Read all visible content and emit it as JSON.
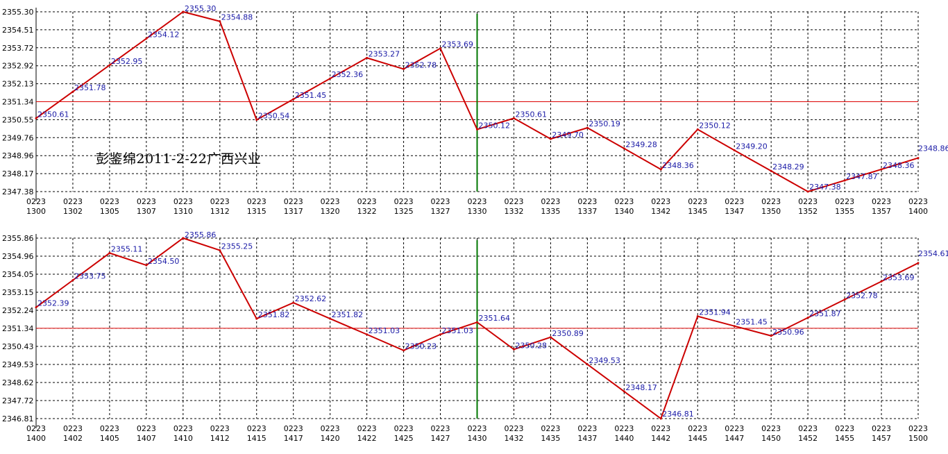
{
  "annotation": "彭鉴绵2011-2-22广西兴业",
  "colors": {
    "line": "#cc0000",
    "label": "#1a1aa6",
    "grid": "#000000",
    "refline": "#dd0000",
    "vline": "#007700"
  },
  "chart_data": [
    {
      "type": "line",
      "title": "",
      "grid": true,
      "ylim": [
        2347.38,
        2355.3
      ],
      "yticks": [
        "2355.30",
        "2354.51",
        "2353.72",
        "2352.92",
        "2352.13",
        "2351.34",
        "2350.55",
        "2349.76",
        "2348.96",
        "2348.17",
        "2347.38"
      ],
      "xticks": [
        [
          "0223",
          "1300"
        ],
        [
          "0223",
          "1302"
        ],
        [
          "0223",
          "1305"
        ],
        [
          "0223",
          "1307"
        ],
        [
          "0223",
          "1310"
        ],
        [
          "0223",
          "1312"
        ],
        [
          "0223",
          "1315"
        ],
        [
          "0223",
          "1317"
        ],
        [
          "0223",
          "1320"
        ],
        [
          "0223",
          "1322"
        ],
        [
          "0223",
          "1325"
        ],
        [
          "0223",
          "1327"
        ],
        [
          "0223",
          "1330"
        ],
        [
          "0223",
          "1332"
        ],
        [
          "0223",
          "1335"
        ],
        [
          "0223",
          "1337"
        ],
        [
          "0223",
          "1340"
        ],
        [
          "0223",
          "1342"
        ],
        [
          "0223",
          "1345"
        ],
        [
          "0223",
          "1347"
        ],
        [
          "0223",
          "1350"
        ],
        [
          "0223",
          "1352"
        ],
        [
          "0223",
          "1355"
        ],
        [
          "0223",
          "1357"
        ],
        [
          "0223",
          "1400"
        ]
      ],
      "reference_value": 2351.34,
      "vertical_marker_index": 12,
      "points": [
        {
          "i": 0,
          "v": 2350.61,
          "label": "2350.61"
        },
        {
          "i": 1,
          "v": 2351.78,
          "label": "2351.78"
        },
        {
          "i": 2,
          "v": 2352.95,
          "label": "2352.95"
        },
        {
          "i": 3,
          "v": 2354.12,
          "label": "2354.12"
        },
        {
          "i": 4,
          "v": 2355.3,
          "label": "2355.30"
        },
        {
          "i": 5,
          "v": 2354.88,
          "label": "2354.88"
        },
        {
          "i": 6,
          "v": 2350.54,
          "label": "2350.54"
        },
        {
          "i": 7,
          "v": 2351.45,
          "label": "2351.45"
        },
        {
          "i": 8,
          "v": 2352.36,
          "label": "2352.36"
        },
        {
          "i": 9,
          "v": 2353.27,
          "label": "2353.27"
        },
        {
          "i": 10,
          "v": 2352.78,
          "label": "2352.78"
        },
        {
          "i": 11,
          "v": 2353.69,
          "label": "2353.69"
        },
        {
          "i": 12,
          "v": 2350.12,
          "label": "2350.12"
        },
        {
          "i": 13,
          "v": 2350.61,
          "label": "2350.61"
        },
        {
          "i": 14,
          "v": 2349.7,
          "label": "2349.70"
        },
        {
          "i": 15,
          "v": 2350.19,
          "label": "2350.19"
        },
        {
          "i": 16,
          "v": 2349.28,
          "label": "2349.28"
        },
        {
          "i": 17,
          "v": 2348.36,
          "label": "2348.36"
        },
        {
          "i": 18,
          "v": 2350.12,
          "label": "2350.12"
        },
        {
          "i": 19,
          "v": 2349.2,
          "label": "2349.20"
        },
        {
          "i": 20,
          "v": 2348.29,
          "label": "2348.29"
        },
        {
          "i": 21,
          "v": 2347.38,
          "label": "2347.38"
        },
        {
          "i": 22,
          "v": 2347.87,
          "label": "2347.87"
        },
        {
          "i": 23,
          "v": 2348.36,
          "label": "2348.36"
        },
        {
          "i": 24,
          "v": 2348.86,
          "label": "2348.86"
        }
      ]
    },
    {
      "type": "line",
      "title": "",
      "grid": true,
      "ylim": [
        2346.81,
        2355.86
      ],
      "yticks": [
        "2355.86",
        "2354.96",
        "2354.05",
        "2353.15",
        "2352.24",
        "2351.34",
        "2350.43",
        "2349.53",
        "2348.62",
        "2347.72",
        "2346.81"
      ],
      "xticks": [
        [
          "0223",
          "1400"
        ],
        [
          "0223",
          "1402"
        ],
        [
          "0223",
          "1405"
        ],
        [
          "0223",
          "1407"
        ],
        [
          "0223",
          "1410"
        ],
        [
          "0223",
          "1412"
        ],
        [
          "0223",
          "1415"
        ],
        [
          "0223",
          "1417"
        ],
        [
          "0223",
          "1420"
        ],
        [
          "0223",
          "1422"
        ],
        [
          "0223",
          "1425"
        ],
        [
          "0223",
          "1427"
        ],
        [
          "0223",
          "1430"
        ],
        [
          "0223",
          "1432"
        ],
        [
          "0223",
          "1435"
        ],
        [
          "0223",
          "1437"
        ],
        [
          "0223",
          "1440"
        ],
        [
          "0223",
          "1442"
        ],
        [
          "0223",
          "1445"
        ],
        [
          "0223",
          "1447"
        ],
        [
          "0223",
          "1450"
        ],
        [
          "0223",
          "1452"
        ],
        [
          "0223",
          "1455"
        ],
        [
          "0223",
          "1457"
        ],
        [
          "0223",
          "1500"
        ]
      ],
      "reference_value": 2351.34,
      "vertical_marker_index": 12,
      "points": [
        {
          "i": 0,
          "v": 2352.39,
          "label": "2352.39"
        },
        {
          "i": 1,
          "v": 2353.75,
          "label": "2353.75"
        },
        {
          "i": 2,
          "v": 2355.11,
          "label": "2355.11"
        },
        {
          "i": 3,
          "v": 2354.5,
          "label": "2354.50"
        },
        {
          "i": 4,
          "v": 2355.86,
          "label": "2355.86"
        },
        {
          "i": 5,
          "v": 2355.25,
          "label": "2355.25"
        },
        {
          "i": 6,
          "v": 2351.82,
          "label": "2351.82"
        },
        {
          "i": 7,
          "v": 2352.62,
          "label": "2352.62"
        },
        {
          "i": 8,
          "v": 2351.82,
          "label": "2351.82"
        },
        {
          "i": 9,
          "v": 2351.03,
          "label": "2351.03"
        },
        {
          "i": 10,
          "v": 2350.23,
          "label": "2350.23"
        },
        {
          "i": 11,
          "v": 2351.03,
          "label": "2351.03"
        },
        {
          "i": 12,
          "v": 2351.64,
          "label": "2351.64"
        },
        {
          "i": 13,
          "v": 2350.28,
          "label": "2350.28"
        },
        {
          "i": 14,
          "v": 2350.89,
          "label": "2350.89"
        },
        {
          "i": 15,
          "v": 2349.53,
          "label": "2349.53"
        },
        {
          "i": 16,
          "v": 2348.17,
          "label": "2348.17"
        },
        {
          "i": 17,
          "v": 2346.81,
          "label": "2346.81"
        },
        {
          "i": 18,
          "v": 2351.94,
          "label": "2351.94"
        },
        {
          "i": 19,
          "v": 2351.45,
          "label": "2351.45"
        },
        {
          "i": 20,
          "v": 2350.96,
          "label": "2350.96"
        },
        {
          "i": 21,
          "v": 2351.87,
          "label": "2351.87"
        },
        {
          "i": 22,
          "v": 2352.78,
          "label": "2352.78"
        },
        {
          "i": 23,
          "v": 2353.69,
          "label": "2353.69"
        },
        {
          "i": 24,
          "v": 2354.61,
          "label": "2354.61"
        }
      ]
    }
  ]
}
